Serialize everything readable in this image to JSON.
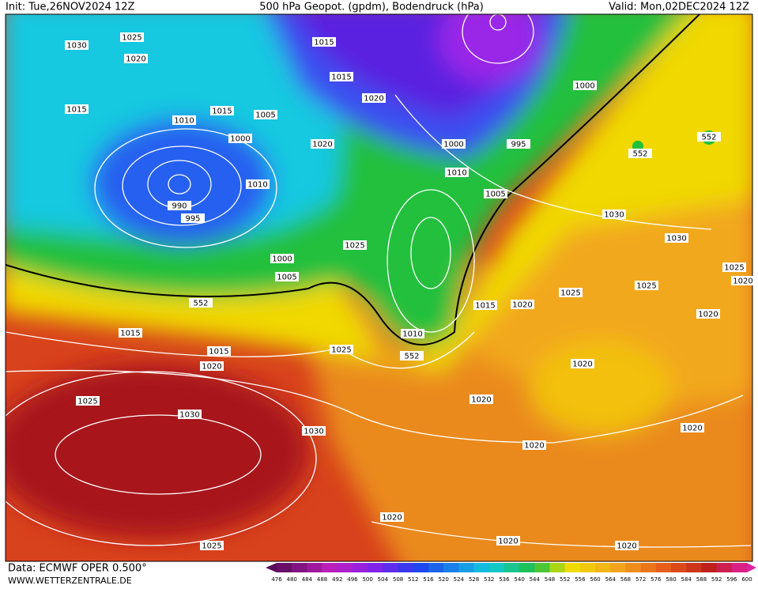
{
  "header": {
    "init": "Init: Tue,26NOV2024 12Z",
    "title": "500 hPa Geopot. (gpdm), Bodendruck (hPa)",
    "valid": "Valid: Mon,02DEC2024 12Z"
  },
  "footer": {
    "data_source": "Data: ECMWF OPER 0.500°",
    "website": "WWW.WETTERZENTRALE.DE"
  },
  "colorbar": {
    "labels": [
      476,
      480,
      484,
      488,
      492,
      496,
      500,
      504,
      508,
      512,
      516,
      520,
      524,
      528,
      532,
      536,
      540,
      544,
      548,
      552,
      556,
      560,
      564,
      568,
      572,
      576,
      580,
      584,
      588,
      592,
      596,
      600
    ]
  },
  "isobar_labels": [
    1030,
    1025,
    1020,
    1015,
    1015,
    1015,
    1015,
    1010,
    1005,
    1000,
    1020,
    1020,
    1010,
    990,
    995,
    1000,
    995,
    1000,
    1010,
    1005,
    552,
    552,
    1030,
    1030,
    1025,
    1000,
    1005,
    552,
    1015,
    1020,
    1025,
    1025,
    1025,
    1020,
    1020,
    1015,
    1010,
    1015,
    1025,
    552,
    1020,
    1020,
    1025,
    1030,
    1020,
    1030,
    1020,
    1020,
    1020,
    1020,
    1020,
    1025
  ]
}
